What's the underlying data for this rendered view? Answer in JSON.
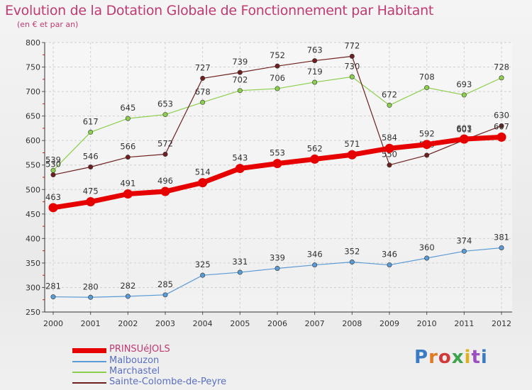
{
  "title": "Evolution de la Dotation Globale de Fonctionnement par Habitant",
  "subtitle": "(en € et par an)",
  "logo": "Proxiti",
  "chart_data": {
    "type": "line",
    "categories": [
      "2000",
      "2001",
      "2002",
      "2003",
      "2004",
      "2005",
      "2006",
      "2007",
      "2008",
      "2009",
      "2010",
      "2011",
      "2012"
    ],
    "ylim": [
      250,
      800
    ],
    "yticks": [
      250,
      300,
      350,
      400,
      450,
      500,
      550,
      600,
      650,
      700,
      750,
      800
    ],
    "xlabel": "",
    "ylabel": "",
    "grid": true,
    "legend": "bottom-left",
    "series": [
      {
        "name": "Malbouzon",
        "color": "#5b9bd5",
        "values": [
          281,
          280,
          282,
          285,
          325,
          331,
          339,
          346,
          352,
          346,
          360,
          374,
          381
        ]
      },
      {
        "name": "Marchastel",
        "color": "#8ccf4d",
        "values": [
          539,
          617,
          645,
          653,
          678,
          702,
          706,
          719,
          730,
          672,
          708,
          693,
          728
        ]
      },
      {
        "name": "Sainte-Colombe-de-Peyre",
        "color": "#6e2020",
        "values": [
          530,
          546,
          566,
          572,
          727,
          739,
          752,
          763,
          772,
          550,
          570,
          601,
          630
        ]
      },
      {
        "name": "PRINSUéJOLS",
        "color": "#e60000",
        "values": [
          463,
          475,
          491,
          496,
          514,
          543,
          553,
          562,
          571,
          584,
          592,
          603,
          607
        ]
      }
    ]
  }
}
